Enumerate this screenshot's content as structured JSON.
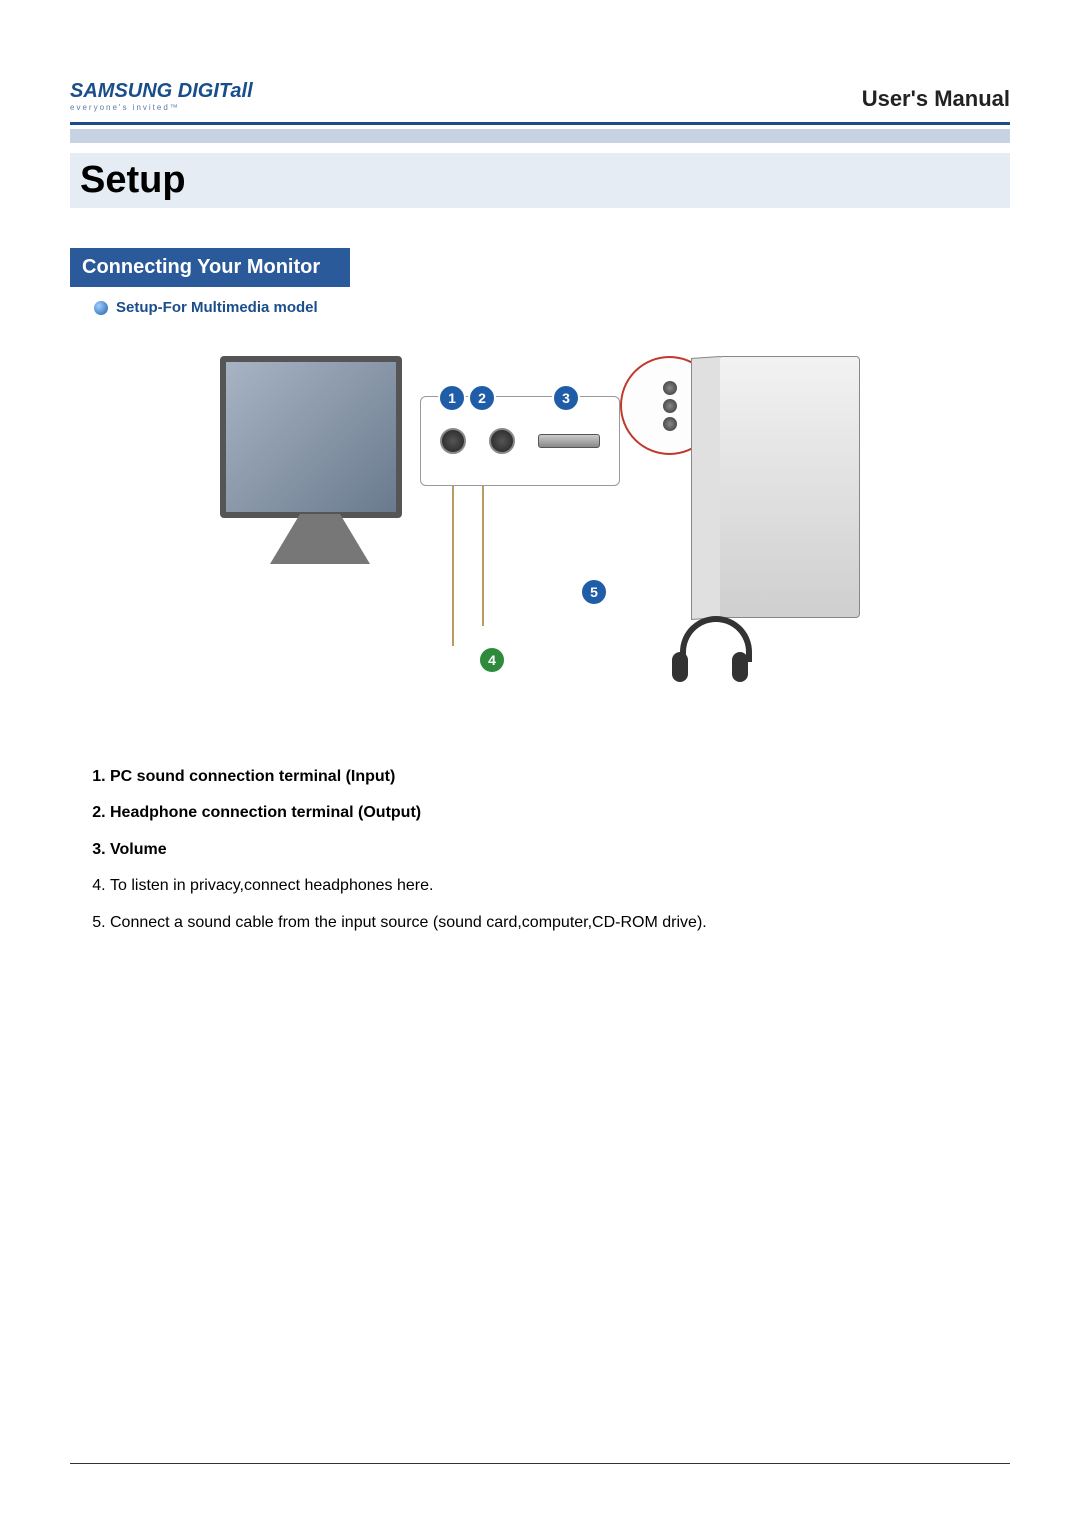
{
  "logo": {
    "brand": "SAMSUNG",
    "suffix": "DIGITall",
    "tagline": "everyone's invited™"
  },
  "header": {
    "manual_title": "User's Manual"
  },
  "main": {
    "section_title": "Setup",
    "subsection_title": "Connecting Your Monitor",
    "sub_note": "Setup-For Multimedia model"
  },
  "diagram": {
    "callouts": {
      "n1": "1",
      "n2": "2",
      "n3": "3",
      "n4": "4",
      "n5": "5"
    },
    "callout_colors": {
      "default": "#1f5da8",
      "green": "#2e8b3d"
    }
  },
  "list": {
    "items": [
      {
        "num": "1.",
        "text": "PC sound connection terminal (Input)",
        "bold": true
      },
      {
        "num": "2.",
        "text": "Headphone connection terminal (Output)",
        "bold": true
      },
      {
        "num": "3.",
        "text": "Volume",
        "bold": true
      },
      {
        "num": "4.",
        "text": "To listen in privacy,connect headphones here.",
        "bold": false
      },
      {
        "num": "5.",
        "text": "Connect a sound cable from the input source (sound card,computer,CD-ROM drive).",
        "bold": false
      }
    ]
  },
  "colors": {
    "brand_blue": "#1a4e8a",
    "section_blue": "#2a5a9a",
    "light_bar": "#c7d3e3",
    "setup_bg": "#e6ecf4",
    "bubble_border": "#c0392b"
  }
}
